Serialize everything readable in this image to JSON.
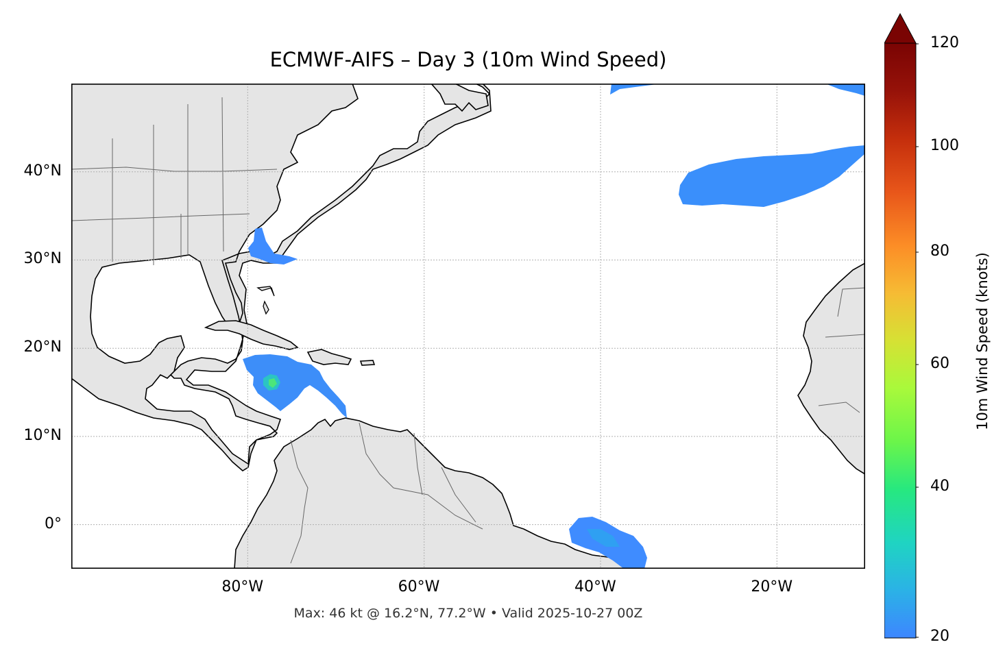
{
  "title": "ECMWF-AIFS – Day 3 (10m Wind Speed)",
  "footer": "Max: 46 kt @ 16.2°N, 77.2°W • Valid 2025-10-27 00Z",
  "map": {
    "lon_range": [
      -100,
      -10
    ],
    "lat_range": [
      -5,
      50
    ],
    "lat_ticks": [
      {
        "value": 40,
        "label": "40°N"
      },
      {
        "value": 30,
        "label": "30°N"
      },
      {
        "value": 20,
        "label": "20°N"
      },
      {
        "value": 10,
        "label": "10°N"
      },
      {
        "value": 0,
        "label": "0°"
      }
    ],
    "lon_ticks": [
      {
        "value": -80,
        "label": "80°W"
      },
      {
        "value": -60,
        "label": "60°W"
      },
      {
        "value": -40,
        "label": "40°W"
      },
      {
        "value": -20,
        "label": "20°W"
      }
    ],
    "gridlines": true,
    "land_color": "#e5e5e5",
    "coast_color": "#000000",
    "border_color": "#666666"
  },
  "colorbar": {
    "label": "10m Wind Speed (knots)",
    "min": 20,
    "max": 120,
    "ticks": [
      "120",
      "100",
      "80",
      "60",
      "40",
      "20"
    ],
    "extend": "max",
    "colors": [
      "#3d86ff",
      "#2bb2e6",
      "#1fd4c2",
      "#27e87f",
      "#6bf54a",
      "#a9f93b",
      "#d6e134",
      "#f6bb34",
      "#fc8d26",
      "#e8561a",
      "#c42e0c",
      "#961209",
      "#7a0403"
    ]
  },
  "max_wind": {
    "value_kt": 46,
    "lat": 16.2,
    "lon": -77.2
  },
  "wind_regions": [
    {
      "name": "caribbean-storm",
      "color": "#3d8ef9"
    },
    {
      "name": "storm-core",
      "color": "#2fd3a8"
    },
    {
      "name": "north-atlantic",
      "color": "#3a8ffb"
    },
    {
      "name": "south-atlantic",
      "color": "#3f8cff"
    },
    {
      "name": "carolina-coast",
      "color": "#3f8cff"
    }
  ]
}
